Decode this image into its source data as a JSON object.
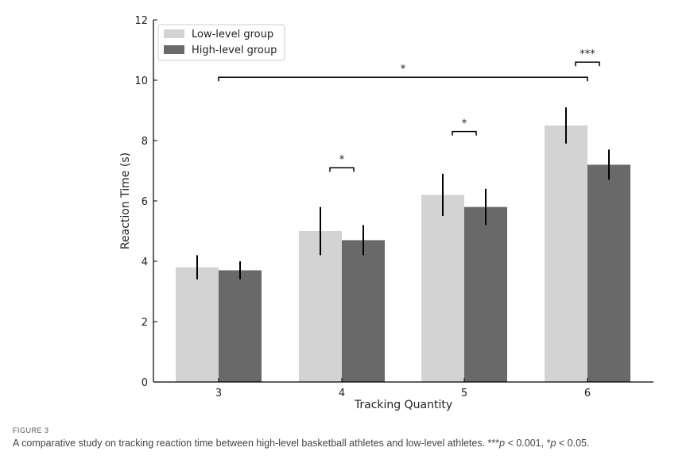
{
  "chart_data": {
    "type": "bar",
    "title": "",
    "xlabel": "Tracking Quantity",
    "ylabel": "Reaction Time (s)",
    "categories": [
      "3",
      "4",
      "5",
      "6"
    ],
    "ylim": [
      0,
      12
    ],
    "yticks": [
      0,
      2,
      4,
      6,
      8,
      10,
      12
    ],
    "legend_position": "top-left",
    "series": [
      {
        "name": "Low-level group",
        "color": "#d3d3d3",
        "values": [
          3.8,
          5.0,
          6.2,
          8.5
        ],
        "errors": [
          0.4,
          0.8,
          0.7,
          0.6
        ]
      },
      {
        "name": "High-level group",
        "color": "#696969",
        "values": [
          3.7,
          4.7,
          5.8,
          7.2
        ],
        "errors": [
          0.3,
          0.5,
          0.6,
          0.5
        ]
      }
    ],
    "significance": [
      {
        "label": "*",
        "from_category": "4",
        "from_series": 0,
        "to_series": 1,
        "y": 7.1,
        "type": "within"
      },
      {
        "label": "*",
        "from_category": "5",
        "from_series": 0,
        "to_series": 1,
        "y": 8.3,
        "type": "within"
      },
      {
        "label": "***",
        "from_category": "6",
        "from_series": 0,
        "to_series": 1,
        "y": 10.6,
        "type": "within"
      },
      {
        "label": "*",
        "from_category": "3",
        "to_category": "6",
        "series": 0,
        "y": 10.1,
        "type": "across"
      }
    ]
  },
  "caption": {
    "label": "FIGURE 3",
    "text_main": "A comparative study on tracking reaction time between high-level basketball athletes and low-level athletes. ***",
    "p1": "p",
    "text_mid": " < 0.001, *",
    "p2": "p",
    "text_end": " < 0.05."
  }
}
